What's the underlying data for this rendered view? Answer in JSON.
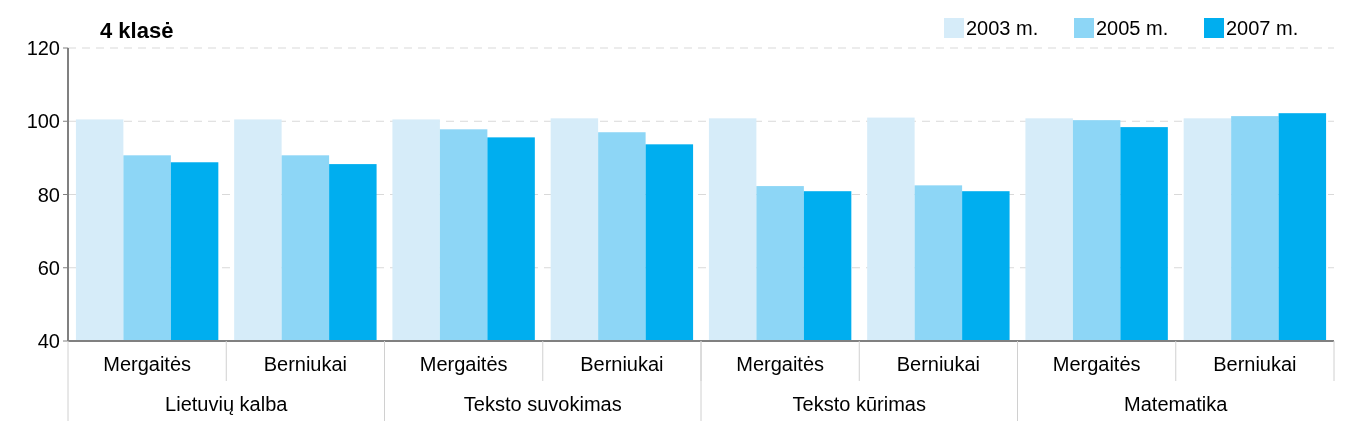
{
  "chart_data": {
    "type": "bar",
    "title": "4 klasė",
    "categories": [
      "Mergaitės",
      "Berniukai",
      "Mergaitės",
      "Berniukai",
      "Mergaitės",
      "Berniukai",
      "Mergaitės",
      "Berniukai"
    ],
    "annotations": [
      "Lietuvių kalba",
      "Teksto suvokimas",
      "Teksto kūrimas",
      "Matematika"
    ],
    "series": [
      {
        "name": "2003 m.",
        "color": "#d6ecf9",
        "values": [
          100.5,
          100.5,
          100.5,
          100.8,
          100.8,
          101,
          100.8,
          100.8
        ]
      },
      {
        "name": "2005 m.",
        "color": "#8dd6f6",
        "values": [
          90.7,
          90.7,
          97.8,
          97,
          82.3,
          82.5,
          100.3,
          101.4
        ]
      },
      {
        "name": "2007 m.",
        "color": "#00aeef",
        "values": [
          88.8,
          88.3,
          95.6,
          93.7,
          80.9,
          80.9,
          98.4,
          102.2
        ]
      }
    ],
    "ylim": [
      40,
      120
    ],
    "yticks": [
      40,
      60,
      80,
      100,
      120
    ],
    "grid": "y",
    "legend": "top right"
  }
}
